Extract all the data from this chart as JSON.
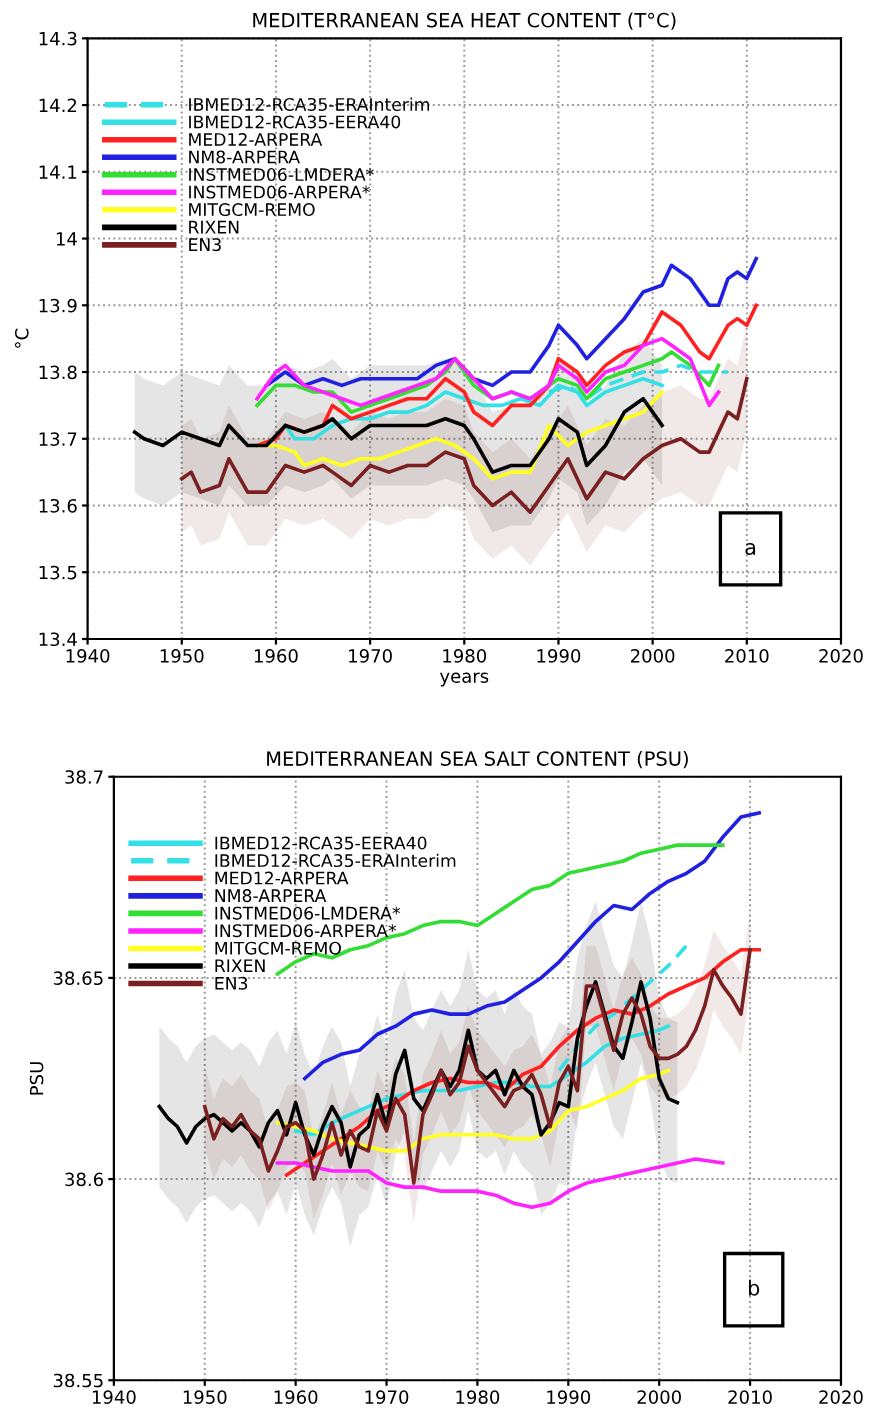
{
  "chart_data": [
    {
      "type": "line",
      "title": "MEDITERRANEAN SEA HEAT CONTENT (T°C)",
      "xlabel": "years",
      "ylabel": "°C",
      "xlim": [
        1940,
        2020
      ],
      "xticks": [
        1940,
        1950,
        1960,
        1970,
        1980,
        1990,
        2000,
        2010,
        2020
      ],
      "ylim": [
        13.4,
        14.3
      ],
      "yticks": [
        13.4,
        13.5,
        13.6,
        13.7,
        13.8,
        13.9,
        14,
        14.1,
        14.2,
        14.3
      ],
      "grid": true,
      "legend": "top left",
      "annotations": [
        "a"
      ],
      "series": [
        {
          "name": "IBMED12-RCA35-ERAInterim",
          "color": "#33e0e6",
          "line_style": "dashed",
          "x": [
            1989,
            1991,
            1993,
            1995,
            1997,
            1999,
            2001,
            2003,
            2005,
            2008
          ],
          "values": [
            13.77,
            13.78,
            13.76,
            13.78,
            13.79,
            13.8,
            13.8,
            13.81,
            13.8,
            13.8
          ]
        },
        {
          "name": "IBMED12-RCA35-EERA40",
          "color": "#33e0e6",
          "line_style": "solid",
          "x": [
            1961,
            1962,
            1964,
            1966,
            1968,
            1970,
            1972,
            1974,
            1976,
            1978,
            1980,
            1982,
            1984,
            1986,
            1988,
            1990,
            1992,
            1993,
            1995,
            1997,
            1999,
            2001
          ],
          "values": [
            13.72,
            13.7,
            13.7,
            13.72,
            13.73,
            13.73,
            13.74,
            13.74,
            13.75,
            13.77,
            13.76,
            13.75,
            13.75,
            13.76,
            13.75,
            13.78,
            13.77,
            13.75,
            13.77,
            13.78,
            13.79,
            13.78
          ]
        },
        {
          "name": "MED12-ARPERA",
          "color": "#ff2020",
          "line_style": "solid",
          "x": [
            1958,
            1960,
            1961,
            1963,
            1965,
            1966,
            1968,
            1970,
            1972,
            1974,
            1976,
            1978,
            1980,
            1981,
            1983,
            1985,
            1987,
            1989,
            1990,
            1992,
            1993,
            1995,
            1997,
            1999,
            2001,
            2003,
            2005,
            2006,
            2008,
            2009,
            2010,
            2011
          ],
          "values": [
            13.69,
            13.7,
            13.72,
            13.71,
            13.72,
            13.75,
            13.73,
            13.74,
            13.75,
            13.76,
            13.76,
            13.79,
            13.77,
            13.74,
            13.72,
            13.75,
            13.75,
            13.78,
            13.82,
            13.8,
            13.78,
            13.81,
            13.83,
            13.84,
            13.89,
            13.87,
            13.83,
            13.82,
            13.87,
            13.88,
            13.87,
            13.9
          ]
        },
        {
          "name": "NM8-ARPERA",
          "color": "#2020e0",
          "line_style": "solid",
          "x": [
            1959,
            1961,
            1963,
            1965,
            1967,
            1969,
            1971,
            1973,
            1975,
            1977,
            1979,
            1981,
            1983,
            1985,
            1987,
            1989,
            1990,
            1992,
            1993,
            1995,
            1997,
            1999,
            2001,
            2002,
            2004,
            2006,
            2007,
            2008,
            2009,
            2010,
            2011
          ],
          "values": [
            13.78,
            13.8,
            13.78,
            13.79,
            13.78,
            13.79,
            13.79,
            13.79,
            13.79,
            13.81,
            13.82,
            13.79,
            13.78,
            13.8,
            13.8,
            13.84,
            13.87,
            13.84,
            13.82,
            13.85,
            13.88,
            13.92,
            13.93,
            13.96,
            13.94,
            13.9,
            13.9,
            13.94,
            13.95,
            13.94,
            13.97
          ]
        },
        {
          "name": "INSTMED06-LMDERA*",
          "color": "#33dd33",
          "line_style": "solid",
          "x": [
            1958,
            1960,
            1962,
            1964,
            1966,
            1968,
            1970,
            1972,
            1974,
            1976,
            1978,
            1979,
            1981,
            1983,
            1985,
            1987,
            1989,
            1990,
            1992,
            1993,
            1995,
            1997,
            1999,
            2001,
            2002,
            2004,
            2006,
            2007
          ],
          "values": [
            13.75,
            13.78,
            13.78,
            13.77,
            13.77,
            13.74,
            13.75,
            13.76,
            13.77,
            13.78,
            13.8,
            13.82,
            13.78,
            13.76,
            13.77,
            13.76,
            13.78,
            13.79,
            13.78,
            13.76,
            13.79,
            13.8,
            13.81,
            13.82,
            13.83,
            13.81,
            13.78,
            13.81
          ]
        },
        {
          "name": "INSTMED06-ARPERA*",
          "color": "#ff22ff",
          "line_style": "solid",
          "x": [
            1958,
            1960,
            1961,
            1963,
            1965,
            1967,
            1969,
            1971,
            1973,
            1975,
            1977,
            1979,
            1981,
            1983,
            1985,
            1987,
            1989,
            1990,
            1992,
            1993,
            1995,
            1997,
            1999,
            2001,
            2002,
            2004,
            2006,
            2007
          ],
          "values": [
            13.76,
            13.8,
            13.81,
            13.78,
            13.77,
            13.76,
            13.75,
            13.76,
            13.77,
            13.78,
            13.79,
            13.82,
            13.79,
            13.76,
            13.77,
            13.76,
            13.78,
            13.81,
            13.79,
            13.77,
            13.8,
            13.81,
            13.84,
            13.85,
            13.84,
            13.82,
            13.75,
            13.77
          ]
        },
        {
          "name": "MITGCM-REMO",
          "color": "#ffff22",
          "line_style": "solid",
          "x": [
            1958,
            1960,
            1962,
            1963,
            1965,
            1967,
            1969,
            1971,
            1973,
            1975,
            1977,
            1979,
            1981,
            1983,
            1985,
            1987,
            1989,
            1991,
            1993,
            1995,
            1997,
            1999,
            2001
          ],
          "values": [
            13.69,
            13.69,
            13.68,
            13.66,
            13.67,
            13.66,
            13.67,
            13.67,
            13.68,
            13.69,
            13.7,
            13.69,
            13.67,
            13.64,
            13.65,
            13.65,
            13.72,
            13.69,
            13.71,
            13.72,
            13.73,
            13.74,
            13.77
          ]
        },
        {
          "name": "RIXEN",
          "color": "#000000",
          "line_style": "solid",
          "x": [
            1945,
            1946,
            1948,
            1950,
            1952,
            1954,
            1955,
            1957,
            1959,
            1961,
            1963,
            1965,
            1966,
            1968,
            1970,
            1972,
            1974,
            1976,
            1978,
            1980,
            1981,
            1983,
            1985,
            1987,
            1989,
            1990,
            1992,
            1993,
            1995,
            1997,
            1999,
            2001
          ],
          "values": [
            13.71,
            13.7,
            13.69,
            13.71,
            13.7,
            13.69,
            13.72,
            13.69,
            13.69,
            13.72,
            13.71,
            13.72,
            13.73,
            13.7,
            13.72,
            13.72,
            13.72,
            13.72,
            13.73,
            13.72,
            13.7,
            13.65,
            13.66,
            13.66,
            13.7,
            13.73,
            13.71,
            13.66,
            13.69,
            13.74,
            13.76,
            13.72
          ],
          "lower": [
            13.62,
            13.61,
            13.6,
            13.62,
            13.61,
            13.6,
            13.63,
            13.6,
            13.6,
            13.63,
            13.62,
            13.63,
            13.64,
            13.61,
            13.63,
            13.63,
            13.63,
            13.63,
            13.64,
            13.63,
            13.61,
            13.56,
            13.57,
            13.57,
            13.61,
            13.64,
            13.62,
            13.57,
            13.6,
            13.65,
            13.67,
            13.63
          ],
          "upper": [
            13.8,
            13.79,
            13.78,
            13.8,
            13.79,
            13.78,
            13.81,
            13.78,
            13.78,
            13.81,
            13.8,
            13.81,
            13.82,
            13.79,
            13.81,
            13.81,
            13.81,
            13.81,
            13.82,
            13.81,
            13.79,
            13.74,
            13.75,
            13.75,
            13.79,
            13.82,
            13.8,
            13.75,
            13.78,
            13.83,
            13.85,
            13.81
          ]
        },
        {
          "name": "EN3",
          "color": "#7a2020",
          "line_style": "solid",
          "x": [
            1950,
            1951,
            1952,
            1954,
            1955,
            1957,
            1959,
            1961,
            1963,
            1965,
            1966,
            1968,
            1970,
            1972,
            1974,
            1976,
            1978,
            1980,
            1981,
            1983,
            1985,
            1987,
            1989,
            1991,
            1993,
            1995,
            1997,
            1999,
            2001,
            2003,
            2005,
            2006,
            2008,
            2009,
            2010
          ],
          "values": [
            13.64,
            13.65,
            13.62,
            13.63,
            13.67,
            13.62,
            13.62,
            13.66,
            13.65,
            13.66,
            13.65,
            13.63,
            13.66,
            13.65,
            13.66,
            13.66,
            13.68,
            13.67,
            13.63,
            13.6,
            13.62,
            13.59,
            13.63,
            13.67,
            13.61,
            13.65,
            13.64,
            13.67,
            13.69,
            13.7,
            13.68,
            13.68,
            13.74,
            13.73,
            13.79
          ],
          "lower": [
            13.56,
            13.57,
            13.54,
            13.55,
            13.59,
            13.54,
            13.54,
            13.58,
            13.57,
            13.58,
            13.57,
            13.55,
            13.58,
            13.57,
            13.58,
            13.58,
            13.6,
            13.59,
            13.55,
            13.52,
            13.54,
            13.51,
            13.55,
            13.59,
            13.53,
            13.57,
            13.56,
            13.59,
            13.61,
            13.62,
            13.6,
            13.6,
            13.66,
            13.65,
            13.71
          ],
          "upper": [
            13.72,
            13.73,
            13.7,
            13.71,
            13.75,
            13.7,
            13.7,
            13.74,
            13.73,
            13.74,
            13.73,
            13.71,
            13.74,
            13.73,
            13.74,
            13.74,
            13.76,
            13.75,
            13.71,
            13.68,
            13.7,
            13.67,
            13.71,
            13.75,
            13.69,
            13.73,
            13.72,
            13.75,
            13.77,
            13.78,
            13.76,
            13.76,
            13.82,
            13.81,
            13.87
          ]
        }
      ]
    },
    {
      "type": "line",
      "title": "MEDITERRANEAN SEA SALT CONTENT (PSU)",
      "ylabel": "PSU",
      "xlim": [
        1940,
        2020
      ],
      "xticks": [
        1940,
        1950,
        1960,
        1970,
        1980,
        1990,
        2000,
        2010,
        2020
      ],
      "ylim": [
        38.55,
        38.7
      ],
      "yticks": [
        38.55,
        38.6,
        38.65,
        38.7
      ],
      "grid": true,
      "legend": "top left",
      "annotations": [
        "b"
      ],
      "series": [
        {
          "name": "IBMED12-RCA35-EERA40",
          "color": "#33e0e6",
          "line_style": "solid",
          "x": [
            1960,
            1962,
            1964,
            1966,
            1968,
            1970,
            1972,
            1974,
            1976,
            1978,
            1980,
            1982,
            1984,
            1986,
            1988,
            1990,
            1992,
            1994,
            1996,
            1998,
            2000,
            2001
          ],
          "values": [
            38.612,
            38.611,
            38.614,
            38.616,
            38.618,
            38.62,
            38.621,
            38.622,
            38.622,
            38.622,
            38.623,
            38.624,
            38.624,
            38.623,
            38.623,
            38.626,
            38.629,
            38.633,
            38.635,
            38.636,
            38.637,
            38.638
          ]
        },
        {
          "name": "IBMED12-RCA35-ERAInterim",
          "color": "#33e0e6",
          "line_style": "dashed",
          "x": [
            1989,
            1991,
            1993,
            1995,
            1997,
            1999,
            2001,
            2003
          ],
          "values": [
            38.627,
            38.633,
            38.638,
            38.641,
            38.645,
            38.649,
            38.653,
            38.658
          ]
        },
        {
          "name": "MED12-ARPERA",
          "color": "#ff2020",
          "line_style": "solid",
          "x": [
            1959,
            1961,
            1963,
            1965,
            1967,
            1969,
            1971,
            1973,
            1975,
            1977,
            1979,
            1981,
            1983,
            1985,
            1987,
            1989,
            1991,
            1993,
            1995,
            1997,
            1999,
            2001,
            2003,
            2005,
            2007,
            2009,
            2011
          ],
          "values": [
            38.601,
            38.604,
            38.607,
            38.61,
            38.613,
            38.617,
            38.619,
            38.622,
            38.624,
            38.625,
            38.624,
            38.624,
            38.622,
            38.626,
            38.628,
            38.633,
            38.637,
            38.64,
            38.642,
            38.641,
            38.643,
            38.646,
            38.648,
            38.65,
            38.654,
            38.657,
            38.657
          ]
        },
        {
          "name": "NM8-ARPERA",
          "color": "#2020e0",
          "line_style": "solid",
          "x": [
            1961,
            1963,
            1965,
            1967,
            1969,
            1971,
            1973,
            1975,
            1977,
            1979,
            1981,
            1983,
            1985,
            1987,
            1989,
            1991,
            1993,
            1995,
            1997,
            1999,
            2001,
            2003,
            2005,
            2007,
            2009,
            2011
          ],
          "values": [
            38.625,
            38.629,
            38.631,
            38.632,
            38.636,
            38.638,
            38.641,
            38.642,
            38.641,
            38.641,
            38.643,
            38.644,
            38.647,
            38.65,
            38.654,
            38.659,
            38.664,
            38.668,
            38.667,
            38.671,
            38.674,
            38.676,
            38.679,
            38.685,
            38.69,
            38.691
          ]
        },
        {
          "name": "INSTMED06-LMDERA*",
          "color": "#33dd33",
          "line_style": "solid",
          "x": [
            1958,
            1960,
            1962,
            1964,
            1966,
            1968,
            1970,
            1972,
            1974,
            1976,
            1978,
            1980,
            1982,
            1984,
            1986,
            1988,
            1990,
            1992,
            1994,
            1996,
            1998,
            2000,
            2002,
            2004,
            2007
          ],
          "values": [
            38.651,
            38.654,
            38.656,
            38.655,
            38.657,
            38.658,
            38.66,
            38.661,
            38.663,
            38.664,
            38.664,
            38.663,
            38.666,
            38.669,
            38.672,
            38.673,
            38.676,
            38.677,
            38.678,
            38.679,
            38.681,
            38.682,
            38.683,
            38.683,
            38.683
          ]
        },
        {
          "name": "INSTMED06-ARPERA*",
          "color": "#ff22ff",
          "line_style": "solid",
          "x": [
            1958,
            1960,
            1962,
            1964,
            1966,
            1968,
            1970,
            1972,
            1974,
            1976,
            1978,
            1980,
            1982,
            1984,
            1986,
            1988,
            1990,
            1992,
            1994,
            1996,
            1998,
            2000,
            2002,
            2004,
            2007
          ],
          "values": [
            38.604,
            38.604,
            38.603,
            38.602,
            38.602,
            38.602,
            38.599,
            38.598,
            38.598,
            38.597,
            38.597,
            38.597,
            38.596,
            38.594,
            38.593,
            38.594,
            38.597,
            38.599,
            38.6,
            38.601,
            38.602,
            38.603,
            38.604,
            38.605,
            38.604
          ]
        },
        {
          "name": "MITGCM-REMO",
          "color": "#ffff22",
          "line_style": "solid",
          "x": [
            1958,
            1960,
            1962,
            1964,
            1966,
            1968,
            1970,
            1972,
            1974,
            1976,
            1978,
            1980,
            1982,
            1984,
            1986,
            1988,
            1990,
            1992,
            1994,
            1996,
            1998,
            2000,
            2001
          ],
          "values": [
            38.614,
            38.613,
            38.612,
            38.61,
            38.609,
            38.608,
            38.607,
            38.607,
            38.61,
            38.611,
            38.611,
            38.611,
            38.611,
            38.61,
            38.61,
            38.612,
            38.617,
            38.618,
            38.62,
            38.622,
            38.625,
            38.626,
            38.627
          ]
        },
        {
          "name": "RIXEN",
          "color": "#000000",
          "line_style": "solid",
          "x": [
            1945,
            1946,
            1947,
            1948,
            1949,
            1950,
            1951,
            1952,
            1953,
            1954,
            1955,
            1956,
            1957,
            1958,
            1959,
            1960,
            1961,
            1962,
            1963,
            1964,
            1965,
            1966,
            1967,
            1968,
            1969,
            1970,
            1971,
            1972,
            1973,
            1974,
            1975,
            1976,
            1977,
            1978,
            1979,
            1980,
            1981,
            1982,
            1983,
            1984,
            1985,
            1986,
            1987,
            1988,
            1989,
            1990,
            1991,
            1992,
            1993,
            1994,
            1995,
            1996,
            1997,
            1998,
            1999,
            2000,
            2001,
            2002
          ],
          "values": [
            38.618,
            38.615,
            38.613,
            38.609,
            38.613,
            38.615,
            38.616,
            38.614,
            38.612,
            38.614,
            38.612,
            38.608,
            38.614,
            38.617,
            38.611,
            38.619,
            38.611,
            38.606,
            38.613,
            38.618,
            38.614,
            38.603,
            38.611,
            38.613,
            38.621,
            38.613,
            38.626,
            38.632,
            38.62,
            38.617,
            38.622,
            38.627,
            38.623,
            38.627,
            38.637,
            38.627,
            38.625,
            38.627,
            38.621,
            38.627,
            38.623,
            38.621,
            38.611,
            38.614,
            38.619,
            38.618,
            38.635,
            38.643,
            38.649,
            38.641,
            38.633,
            38.63,
            38.639,
            38.649,
            38.64,
            38.625,
            38.62,
            38.619
          ],
          "lower": [
            38.598,
            38.595,
            38.593,
            38.589,
            38.593,
            38.595,
            38.596,
            38.594,
            38.592,
            38.594,
            38.592,
            38.588,
            38.594,
            38.597,
            38.591,
            38.599,
            38.591,
            38.586,
            38.593,
            38.598,
            38.594,
            38.583,
            38.591,
            38.593,
            38.601,
            38.593,
            38.606,
            38.612,
            38.6,
            38.597,
            38.602,
            38.607,
            38.603,
            38.607,
            38.617,
            38.607,
            38.605,
            38.607,
            38.601,
            38.607,
            38.603,
            38.601,
            38.591,
            38.594,
            38.599,
            38.598,
            38.615,
            38.623,
            38.629,
            38.621,
            38.613,
            38.61,
            38.619,
            38.629,
            38.62,
            38.605,
            38.6,
            38.599
          ],
          "upper": [
            38.638,
            38.635,
            38.633,
            38.629,
            38.633,
            38.635,
            38.636,
            38.634,
            38.632,
            38.634,
            38.632,
            38.628,
            38.634,
            38.637,
            38.631,
            38.639,
            38.631,
            38.626,
            38.633,
            38.638,
            38.634,
            38.623,
            38.631,
            38.633,
            38.641,
            38.633,
            38.646,
            38.652,
            38.64,
            38.637,
            38.642,
            38.647,
            38.643,
            38.647,
            38.657,
            38.647,
            38.645,
            38.647,
            38.641,
            38.647,
            38.643,
            38.641,
            38.631,
            38.634,
            38.639,
            38.638,
            38.655,
            38.663,
            38.669,
            38.661,
            38.653,
            38.65,
            38.659,
            38.669,
            38.66,
            38.645,
            38.64,
            38.639
          ]
        },
        {
          "name": "EN3",
          "color": "#7a2020",
          "line_style": "solid",
          "x": [
            1950,
            1951,
            1952,
            1953,
            1954,
            1955,
            1956,
            1957,
            1958,
            1959,
            1960,
            1961,
            1962,
            1963,
            1964,
            1965,
            1966,
            1967,
            1968,
            1969,
            1970,
            1971,
            1972,
            1973,
            1974,
            1975,
            1976,
            1977,
            1978,
            1979,
            1980,
            1981,
            1982,
            1983,
            1984,
            1985,
            1986,
            1987,
            1988,
            1989,
            1990,
            1991,
            1992,
            1993,
            1994,
            1995,
            1996,
            1997,
            1998,
            1999,
            2000,
            2001,
            2002,
            2003,
            2004,
            2005,
            2006,
            2007,
            2008,
            2009,
            2010
          ],
          "values": [
            38.618,
            38.61,
            38.615,
            38.613,
            38.616,
            38.612,
            38.61,
            38.602,
            38.607,
            38.613,
            38.614,
            38.612,
            38.6,
            38.606,
            38.614,
            38.606,
            38.612,
            38.608,
            38.607,
            38.617,
            38.612,
            38.62,
            38.616,
            38.599,
            38.616,
            38.621,
            38.627,
            38.621,
            38.624,
            38.633,
            38.627,
            38.624,
            38.621,
            38.618,
            38.622,
            38.623,
            38.626,
            38.621,
            38.613,
            38.624,
            38.628,
            38.622,
            38.648,
            38.648,
            38.64,
            38.632,
            38.641,
            38.645,
            38.641,
            38.633,
            38.63,
            38.63,
            38.631,
            38.633,
            38.637,
            38.643,
            38.652,
            38.648,
            38.645,
            38.641,
            38.657
          ],
          "lower": [
            38.608,
            38.6,
            38.605,
            38.603,
            38.606,
            38.602,
            38.6,
            38.592,
            38.597,
            38.603,
            38.604,
            38.602,
            38.59,
            38.596,
            38.604,
            38.596,
            38.602,
            38.598,
            38.597,
            38.607,
            38.602,
            38.61,
            38.606,
            38.589,
            38.606,
            38.611,
            38.617,
            38.611,
            38.614,
            38.623,
            38.617,
            38.614,
            38.611,
            38.608,
            38.612,
            38.613,
            38.616,
            38.611,
            38.603,
            38.614,
            38.618,
            38.612,
            38.638,
            38.638,
            38.63,
            38.622,
            38.631,
            38.635,
            38.631,
            38.623,
            38.62,
            38.62,
            38.621,
            38.623,
            38.627,
            38.633,
            38.642,
            38.638,
            38.635,
            38.631,
            38.647
          ],
          "upper": [
            38.628,
            38.62,
            38.625,
            38.623,
            38.626,
            38.622,
            38.62,
            38.612,
            38.617,
            38.623,
            38.624,
            38.622,
            38.61,
            38.616,
            38.624,
            38.616,
            38.622,
            38.618,
            38.617,
            38.627,
            38.622,
            38.63,
            38.626,
            38.609,
            38.626,
            38.631,
            38.637,
            38.631,
            38.634,
            38.643,
            38.637,
            38.634,
            38.631,
            38.628,
            38.632,
            38.633,
            38.636,
            38.631,
            38.623,
            38.634,
            38.638,
            38.632,
            38.658,
            38.658,
            38.65,
            38.642,
            38.651,
            38.655,
            38.651,
            38.643,
            38.64,
            38.64,
            38.641,
            38.643,
            38.647,
            38.653,
            38.662,
            38.658,
            38.655,
            38.651,
            38.667
          ]
        }
      ]
    }
  ]
}
